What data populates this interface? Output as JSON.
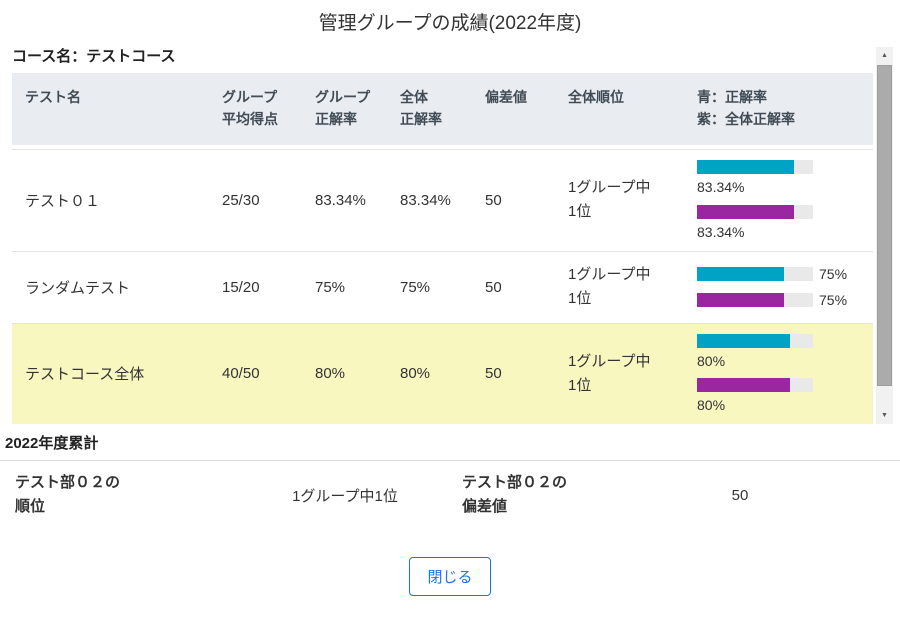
{
  "title": "管理グループの成績(2022年度)",
  "course_label": "コース名：テストコース",
  "table": {
    "headers": {
      "test_name": "テスト名",
      "group_avg_score": "グループ\n平均得点",
      "group_correct_rate": "グループ\n正解率",
      "overall_correct_rate": "全体\n正解率",
      "deviation": "偏差値",
      "overall_rank": "全体順位",
      "bar_legend": "青：正解率\n紫：全体正解率"
    },
    "rows": [
      {
        "name": "テスト０１",
        "avg": "25/30",
        "group_rate": "83.34%",
        "overall_rate": "83.34%",
        "deviation": "50",
        "rank": "1グループ中\n1位",
        "bars": [
          {
            "color": "blue",
            "value": 83.34,
            "label": "83.34%"
          },
          {
            "color": "purple",
            "value": 83.34,
            "label": "83.34%"
          }
        ]
      },
      {
        "name": "ランダムテスト",
        "avg": "15/20",
        "group_rate": "75%",
        "overall_rate": "75%",
        "deviation": "50",
        "rank": "1グループ中\n1位",
        "bars": [
          {
            "color": "blue",
            "value": 75,
            "label": "75%"
          },
          {
            "color": "purple",
            "value": 75,
            "label": "75%"
          }
        ]
      },
      {
        "name": "テストコース全体",
        "avg": "40/50",
        "group_rate": "80%",
        "overall_rate": "80%",
        "deviation": "50",
        "rank": "1グループ中\n1位",
        "bars": [
          {
            "color": "blue",
            "value": 80,
            "label": "80%"
          },
          {
            "color": "purple",
            "value": 80,
            "label": "80%"
          }
        ]
      }
    ]
  },
  "chart_data": {
    "type": "bar",
    "categories": [
      "テスト０１",
      "ランダムテスト",
      "テストコース全体"
    ],
    "series": [
      {
        "name": "正解率",
        "values": [
          83.34,
          75,
          80
        ]
      },
      {
        "name": "全体正解率",
        "values": [
          83.34,
          75,
          80
        ]
      }
    ],
    "xlim": [
      0,
      100
    ],
    "legend": "青：正解率 / 紫：全体正解率"
  },
  "summary": {
    "heading": "2022年度累計",
    "rank_label": "テスト部０２の\n順位",
    "rank_value": "1グループ中1位",
    "deviation_label": "テスト部０２の\n偏差値",
    "deviation_value": "50"
  },
  "close_button_label": "閉じる",
  "scrollbar": {
    "up_glyph": "▲",
    "down_glyph": "▼"
  },
  "colors": {
    "bar_blue": "#00a3c4",
    "bar_purple": "#9a27a0",
    "bar_track": "#e9e9e9",
    "highlight_row": "#f9f7c0",
    "header_bg": "#e9edf1",
    "accent_blue": "#1a73e8"
  }
}
